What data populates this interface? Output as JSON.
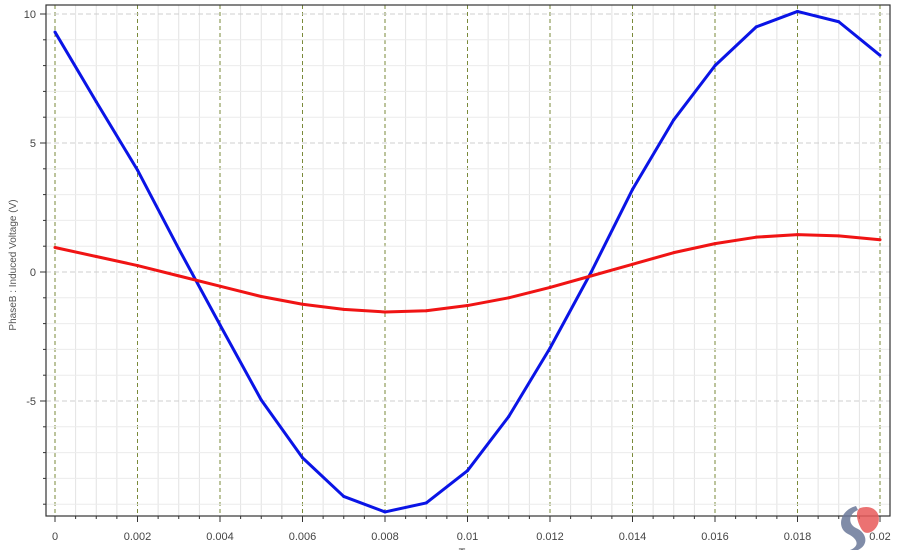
{
  "chart_data": {
    "type": "line",
    "title": "",
    "xlabel": "T",
    "ylabel": "PhaseB : Induced  Voltage (V)",
    "xlim": [
      0,
      0.02
    ],
    "ylim": [
      -9.5,
      10.3
    ],
    "grid": true,
    "x_ticks": [
      "0",
      "0.002",
      "0.004",
      "0.006",
      "0.008",
      "0.01",
      "0.012",
      "0.014",
      "0.016",
      "0.018",
      "0.02"
    ],
    "y_ticks": [
      "10",
      "5",
      "0",
      "-5"
    ],
    "x": [
      0,
      0.001,
      0.002,
      0.003,
      0.004,
      0.005,
      0.006,
      0.007,
      0.008,
      0.009,
      0.01,
      0.011,
      0.012,
      0.013,
      0.014,
      0.015,
      0.016,
      0.017,
      0.018,
      0.019,
      0.02
    ],
    "series": [
      {
        "color": "#0a14e6",
        "values": [
          9.3,
          6.6,
          3.95,
          0.9,
          -2.05,
          -4.96,
          -7.2,
          -8.7,
          -9.3,
          -8.95,
          -7.7,
          -5.6,
          -2.95,
          0.0,
          3.2,
          5.9,
          8.0,
          9.5,
          10.1,
          9.7,
          8.4
        ]
      },
      {
        "color": "#f01414",
        "values": [
          0.95,
          0.6,
          0.25,
          -0.15,
          -0.55,
          -0.95,
          -1.25,
          -1.45,
          -1.55,
          -1.5,
          -1.3,
          -1.0,
          -0.6,
          -0.15,
          0.3,
          0.75,
          1.1,
          1.35,
          1.45,
          1.4,
          1.25
        ]
      }
    ]
  }
}
